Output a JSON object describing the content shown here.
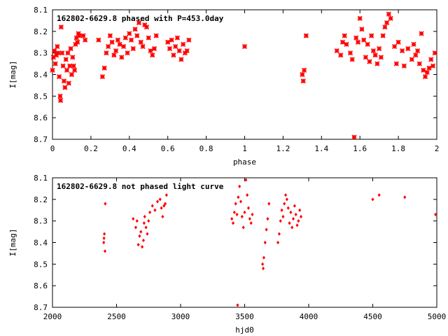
{
  "chart_data": [
    {
      "type": "scatter",
      "title": "162802-6629.8 phased with P=453.0day",
      "xlabel": "phase",
      "ylabel": "I[mag]",
      "xlim": [
        0,
        2
      ],
      "ylim": [
        8.7,
        8.1
      ],
      "y_inverted": true,
      "grid": false,
      "marker": "asterisk",
      "color": "#ff0000",
      "xticks": [
        "0",
        "0.2",
        "0.4",
        "0.6",
        "0.8",
        "1",
        "1.2",
        "1.4",
        "1.6",
        "1.8",
        "2"
      ],
      "yticks": [
        "8.1",
        "8.2",
        "8.3",
        "8.4",
        "8.5",
        "8.6",
        "8.7"
      ],
      "series": [
        {
          "points": [
            [
              0.0,
              8.38
            ],
            [
              0.005,
              8.32
            ],
            [
              0.01,
              8.29
            ],
            [
              0.015,
              8.35
            ],
            [
              0.02,
              8.31
            ],
            [
              0.025,
              8.27
            ],
            [
              0.03,
              8.3
            ],
            [
              0.035,
              8.41
            ],
            [
              0.04,
              8.5
            ],
            [
              0.042,
              8.52
            ],
            [
              0.045,
              8.18
            ],
            [
              0.05,
              8.3
            ],
            [
              0.055,
              8.36
            ],
            [
              0.06,
              8.43
            ],
            [
              0.065,
              8.46
            ],
            [
              0.07,
              8.33
            ],
            [
              0.075,
              8.38
            ],
            [
              0.08,
              8.3
            ],
            [
              0.085,
              8.44
            ],
            [
              0.09,
              8.36
            ],
            [
              0.095,
              8.28
            ],
            [
              0.1,
              8.4
            ],
            [
              0.105,
              8.32
            ],
            [
              0.11,
              8.36
            ],
            [
              0.115,
              8.38
            ],
            [
              0.12,
              8.26
            ],
            [
              0.125,
              8.23
            ],
            [
              0.13,
              8.25
            ],
            [
              0.135,
              8.21
            ],
            [
              0.14,
              8.22
            ],
            [
              0.16,
              8.22
            ],
            [
              0.17,
              8.24
            ],
            [
              0.24,
              8.24
            ],
            [
              0.26,
              8.41
            ],
            [
              0.27,
              8.37
            ],
            [
              0.28,
              8.3
            ],
            [
              0.29,
              8.27
            ],
            [
              0.3,
              8.22
            ],
            [
              0.31,
              8.25
            ],
            [
              0.32,
              8.31
            ],
            [
              0.33,
              8.29
            ],
            [
              0.34,
              8.24
            ],
            [
              0.35,
              8.26
            ],
            [
              0.36,
              8.32
            ],
            [
              0.37,
              8.27
            ],
            [
              0.38,
              8.23
            ],
            [
              0.39,
              8.3
            ],
            [
              0.4,
              8.21
            ],
            [
              0.41,
              8.24
            ],
            [
              0.42,
              8.28
            ],
            [
              0.43,
              8.19
            ],
            [
              0.44,
              8.22
            ],
            [
              0.45,
              8.16
            ],
            [
              0.46,
              8.25
            ],
            [
              0.47,
              8.27
            ],
            [
              0.48,
              8.17
            ],
            [
              0.49,
              8.18
            ],
            [
              0.5,
              8.23
            ],
            [
              0.51,
              8.29
            ],
            [
              0.52,
              8.31
            ],
            [
              0.53,
              8.28
            ],
            [
              0.54,
              8.22
            ],
            [
              0.6,
              8.25
            ],
            [
              0.61,
              8.28
            ],
            [
              0.62,
              8.24
            ],
            [
              0.63,
              8.31
            ],
            [
              0.64,
              8.27
            ],
            [
              0.65,
              8.23
            ],
            [
              0.66,
              8.29
            ],
            [
              0.67,
              8.33
            ],
            [
              0.68,
              8.26
            ],
            [
              0.69,
              8.3
            ],
            [
              0.7,
              8.29
            ],
            [
              0.71,
              8.24
            ],
            [
              1.0,
              8.27
            ],
            [
              1.3,
              8.4
            ],
            [
              1.305,
              8.43
            ],
            [
              1.31,
              8.38
            ],
            [
              1.32,
              8.22
            ],
            [
              1.48,
              8.29
            ],
            [
              1.5,
              8.31
            ],
            [
              1.51,
              8.25
            ],
            [
              1.52,
              8.22
            ],
            [
              1.53,
              8.26
            ],
            [
              1.55,
              8.3
            ],
            [
              1.56,
              8.33
            ],
            [
              1.57,
              8.69
            ],
            [
              1.58,
              8.23
            ],
            [
              1.59,
              8.25
            ],
            [
              1.6,
              8.14
            ],
            [
              1.61,
              8.19
            ],
            [
              1.62,
              8.24
            ],
            [
              1.63,
              8.32
            ],
            [
              1.64,
              8.26
            ],
            [
              1.65,
              8.34
            ],
            [
              1.66,
              8.22
            ],
            [
              1.67,
              8.29
            ],
            [
              1.68,
              8.31
            ],
            [
              1.69,
              8.35
            ],
            [
              1.7,
              8.28
            ],
            [
              1.71,
              8.32
            ],
            [
              1.72,
              8.22
            ],
            [
              1.73,
              8.18
            ],
            [
              1.74,
              8.16
            ],
            [
              1.75,
              8.12
            ],
            [
              1.76,
              8.14
            ],
            [
              1.78,
              8.27
            ],
            [
              1.79,
              8.35
            ],
            [
              1.8,
              8.25
            ],
            [
              1.82,
              8.29
            ],
            [
              1.83,
              8.36
            ],
            [
              1.85,
              8.28
            ],
            [
              1.87,
              8.33
            ],
            [
              1.88,
              8.26
            ],
            [
              1.89,
              8.31
            ],
            [
              1.9,
              8.29
            ],
            [
              1.91,
              8.35
            ],
            [
              1.92,
              8.21
            ],
            [
              1.93,
              8.38
            ],
            [
              1.94,
              8.41
            ],
            [
              1.95,
              8.39
            ],
            [
              1.96,
              8.37
            ],
            [
              1.97,
              8.33
            ],
            [
              1.98,
              8.36
            ],
            [
              1.99,
              8.3
            ]
          ]
        }
      ]
    },
    {
      "type": "scatter",
      "title": "162802-6629.8 not phased light curve",
      "xlabel": "hjd0",
      "ylabel": "I[mag]",
      "xlim": [
        2000,
        5000
      ],
      "ylim": [
        8.7,
        8.1
      ],
      "y_inverted": true,
      "grid": false,
      "marker": "diamond",
      "color": "#ff0000",
      "xticks": [
        "2000",
        "2500",
        "3000",
        "3500",
        "4000",
        "4500",
        "5000"
      ],
      "yticks": [
        "8.1",
        "8.2",
        "8.3",
        "8.4",
        "8.5",
        "8.6",
        "8.7"
      ],
      "series": [
        {
          "points": [
            [
              2400,
              8.4
            ],
            [
              2402,
              8.38
            ],
            [
              2405,
              8.36
            ],
            [
              2410,
              8.44
            ],
            [
              2412,
              8.22
            ],
            [
              2630,
              8.29
            ],
            [
              2650,
              8.33
            ],
            [
              2660,
              8.3
            ],
            [
              2670,
              8.41
            ],
            [
              2680,
              8.37
            ],
            [
              2690,
              8.35
            ],
            [
              2700,
              8.42
            ],
            [
              2710,
              8.39
            ],
            [
              2715,
              8.31
            ],
            [
              2720,
              8.28
            ],
            [
              2730,
              8.33
            ],
            [
              2740,
              8.36
            ],
            [
              2750,
              8.3
            ],
            [
              2760,
              8.26
            ],
            [
              2780,
              8.23
            ],
            [
              2800,
              8.25
            ],
            [
              2820,
              8.21
            ],
            [
              2840,
              8.2
            ],
            [
              2850,
              8.24
            ],
            [
              2860,
              8.28
            ],
            [
              2870,
              8.23
            ],
            [
              2880,
              8.22
            ],
            [
              2890,
              8.18
            ],
            [
              3400,
              8.29
            ],
            [
              3410,
              8.31
            ],
            [
              3420,
              8.26
            ],
            [
              3430,
              8.22
            ],
            [
              3440,
              8.27
            ],
            [
              3445,
              8.69
            ],
            [
              3450,
              8.19
            ],
            [
              3460,
              8.14
            ],
            [
              3470,
              8.21
            ],
            [
              3480,
              8.28
            ],
            [
              3490,
              8.33
            ],
            [
              3500,
              8.26
            ],
            [
              3510,
              8.11
            ],
            [
              3520,
              8.18
            ],
            [
              3530,
              8.24
            ],
            [
              3540,
              8.29
            ],
            [
              3550,
              8.31
            ],
            [
              3560,
              8.27
            ],
            [
              3640,
              8.5
            ],
            [
              3645,
              8.52
            ],
            [
              3650,
              8.47
            ],
            [
              3660,
              8.4
            ],
            [
              3670,
              8.34
            ],
            [
              3680,
              8.29
            ],
            [
              3690,
              8.22
            ],
            [
              3760,
              8.4
            ],
            [
              3770,
              8.36
            ],
            [
              3780,
              8.3
            ],
            [
              3790,
              8.25
            ],
            [
              3800,
              8.28
            ],
            [
              3810,
              8.22
            ],
            [
              3820,
              8.18
            ],
            [
              3830,
              8.2
            ],
            [
              3840,
              8.24
            ],
            [
              3850,
              8.31
            ],
            [
              3860,
              8.26
            ],
            [
              3870,
              8.33
            ],
            [
              3880,
              8.29
            ],
            [
              3890,
              8.23
            ],
            [
              3900,
              8.27
            ],
            [
              3910,
              8.32
            ],
            [
              3920,
              8.3
            ],
            [
              3930,
              8.25
            ],
            [
              3940,
              8.28
            ],
            [
              4500,
              8.2
            ],
            [
              4550,
              8.18
            ],
            [
              4750,
              8.19
            ],
            [
              4990,
              8.27
            ]
          ]
        }
      ]
    }
  ]
}
